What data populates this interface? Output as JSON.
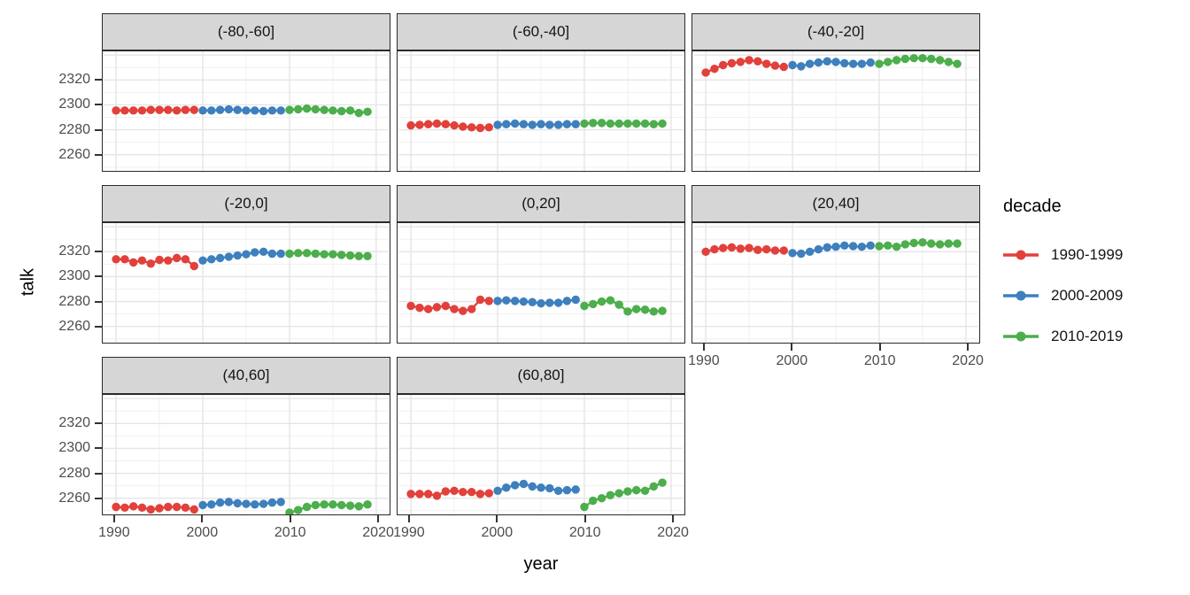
{
  "chart_data": {
    "type": "scatter",
    "title": "",
    "xlabel": "year",
    "ylabel": "talk",
    "x_ticks": [
      1990,
      2000,
      2010,
      2020
    ],
    "y_ticks": [
      2260,
      2280,
      2300,
      2320
    ],
    "y_major": [
      2260,
      2280,
      2300,
      2320,
      2340
    ],
    "y_minor": [
      2250,
      2270,
      2290,
      2310,
      2330
    ],
    "x_minor": [
      1995,
      2005,
      2015
    ],
    "xlim": [
      1988.6,
      2021.4
    ],
    "ylim": [
      2247,
      2343
    ],
    "grid": true,
    "legend": {
      "title": "decade",
      "position": "right",
      "entries": [
        {
          "label": "1990-1999",
          "color": "#E2403B"
        },
        {
          "label": "2000-2009",
          "color": "#3E80BD"
        },
        {
          "label": "2010-2019",
          "color": "#4CAE4C"
        }
      ]
    },
    "style": {
      "panel_bg": "#ffffff",
      "strip_bg": "#d6d6d6",
      "border": "#2a2a2a",
      "grid_major": "#e5e5e5",
      "grid_minor": "#f0f0f0",
      "tick_text": "#4d4d4d"
    },
    "facets": [
      {
        "label": "(-80,-60]",
        "series": [
          {
            "decade": "1990-1999",
            "values": [
              2295.5,
              2295.5,
              2295.5,
              2295.5,
              2296,
              2296,
              2296,
              2295.5,
              2296,
              2296
            ]
          },
          {
            "decade": "2000-2009",
            "values": [
              2295.5,
              2295.5,
              2296,
              2296.5,
              2296,
              2295.5,
              2295.5,
              2295,
              2295.5,
              2295.5
            ]
          },
          {
            "decade": "2010-2019",
            "values": [
              2296,
              2296.5,
              2297,
              2296.5,
              2296,
              2295.5,
              2295,
              2295.5,
              2293.5,
              2294.5
            ]
          }
        ]
      },
      {
        "label": "(-60,-40]",
        "series": [
          {
            "decade": "1990-1999",
            "values": [
              2283.5,
              2284,
              2284.5,
              2285,
              2284.5,
              2283.5,
              2282.5,
              2282,
              2281.5,
              2282
            ]
          },
          {
            "decade": "2000-2009",
            "values": [
              2284,
              2284.5,
              2285,
              2284.5,
              2284,
              2284.5,
              2284,
              2284,
              2284.5,
              2284.5
            ]
          },
          {
            "decade": "2010-2019",
            "values": [
              2285,
              2285.5,
              2285.5,
              2285,
              2285,
              2285,
              2285,
              2285,
              2284.5,
              2285
            ]
          }
        ]
      },
      {
        "label": "(-40,-20]",
        "series": [
          {
            "decade": "1990-1999",
            "values": [
              2326,
              2329,
              2332,
              2333.5,
              2334.5,
              2336,
              2335,
              2333,
              2331.5,
              2330.5
            ]
          },
          {
            "decade": "2000-2009",
            "values": [
              2332,
              2331,
              2333,
              2334,
              2335,
              2334.5,
              2333.5,
              2333,
              2333,
              2334
            ]
          },
          {
            "decade": "2010-2019",
            "values": [
              2333,
              2334.5,
              2336,
              2337,
              2337.5,
              2337.5,
              2337,
              2336,
              2334.5,
              2333
            ]
          }
        ]
      },
      {
        "label": "(-20,0]",
        "series": [
          {
            "decade": "1990-1999",
            "values": [
              2314,
              2314,
              2311.5,
              2313,
              2310.5,
              2313.5,
              2313,
              2315,
              2314,
              2308.5
            ]
          },
          {
            "decade": "2000-2009",
            "values": [
              2313,
              2314,
              2315,
              2316,
              2317,
              2318,
              2319.5,
              2320,
              2318.5,
              2318.5
            ]
          },
          {
            "decade": "2010-2019",
            "values": [
              2318.5,
              2319,
              2319,
              2318.5,
              2318,
              2318,
              2317.5,
              2317,
              2316.5,
              2316.5
            ]
          }
        ]
      },
      {
        "label": "(0,20]",
        "series": [
          {
            "decade": "1990-1999",
            "values": [
              2276.5,
              2275,
              2274,
              2275.5,
              2276.5,
              2274,
              2272.5,
              2274,
              2281.5,
              2280.5
            ]
          },
          {
            "decade": "2000-2009",
            "values": [
              2280.5,
              2281,
              2280.5,
              2280,
              2279.5,
              2278.5,
              2279,
              2279,
              2280.5,
              2281.5
            ]
          },
          {
            "decade": "2010-2019",
            "values": [
              2276.5,
              2278,
              2280,
              2281,
              2277.5,
              2272,
              2274,
              2273.5,
              2272,
              2272.5
            ]
          }
        ]
      },
      {
        "label": "(20,40]",
        "series": [
          {
            "decade": "1990-1999",
            "values": [
              2320,
              2322,
              2323,
              2323.5,
              2322.5,
              2323,
              2321.5,
              2322,
              2321,
              2321
            ]
          },
          {
            "decade": "2000-2009",
            "values": [
              2319,
              2318.5,
              2320,
              2322,
              2323.5,
              2324,
              2325,
              2324.5,
              2324,
              2325
            ]
          },
          {
            "decade": "2010-2019",
            "values": [
              2324.5,
              2325,
              2324,
              2326,
              2327,
              2327.5,
              2326.5,
              2326,
              2326.5,
              2326.5
            ]
          }
        ]
      },
      {
        "label": "(40,60]",
        "series": [
          {
            "decade": "1990-1999",
            "values": [
              2253,
              2252.5,
              2253.5,
              2252.5,
              2251,
              2252,
              2253,
              2253,
              2252.5,
              2251
            ]
          },
          {
            "decade": "2000-2009",
            "values": [
              2254.5,
              2255,
              2256.5,
              2257,
              2256,
              2255.5,
              2255,
              2255.5,
              2256.5,
              2257
            ]
          },
          {
            "decade": "2010-2019",
            "values": [
              2248.5,
              2250.5,
              2253,
              2254.5,
              2255,
              2255,
              2254.5,
              2254,
              2253.5,
              2255
            ]
          }
        ]
      },
      {
        "label": "(60,80]",
        "series": [
          {
            "decade": "1990-1999",
            "values": [
              2263.5,
              2263.5,
              2263.5,
              2262,
              2265.5,
              2266,
              2265,
              2265,
              2263.5,
              2264
            ]
          },
          {
            "decade": "2000-2009",
            "values": [
              2266,
              2268.5,
              2270.5,
              2271.5,
              2269.5,
              2268.5,
              2268,
              2266,
              2266.5,
              2267
            ]
          },
          {
            "decade": "2010-2019",
            "values": [
              2253,
              2258,
              2260,
              2262.5,
              2264,
              2265.5,
              2266.5,
              2266,
              2269.5,
              2272.5
            ]
          }
        ]
      }
    ]
  }
}
